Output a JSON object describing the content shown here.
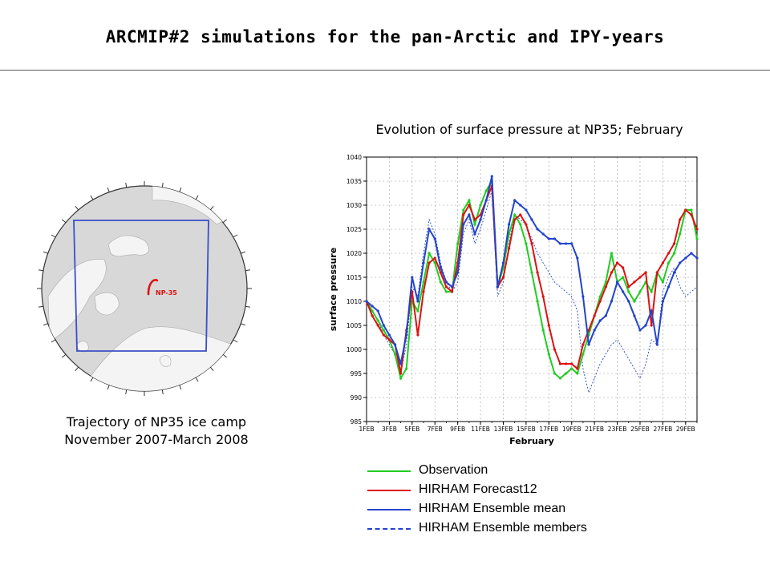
{
  "slide": {
    "title": "ARCMIP#2 simulations for the pan-Arctic and IPY-years"
  },
  "map": {
    "trajectory_label": "NP-35",
    "caption_line1": "Trajectory of NP35 ice camp",
    "caption_line2": "November 2007-March 2008",
    "colors": {
      "ocean": "#d8d8d8",
      "land": "#f4f4f4",
      "domain_box": "#3b4fc7",
      "trajectory": "#dd1111"
    }
  },
  "chart_data": {
    "type": "line",
    "title": "Evolution of surface pressure at NP35; February",
    "xlabel": "February",
    "ylabel": "surface pressure",
    "ylim": [
      985,
      1040
    ],
    "yticks": [
      985,
      990,
      995,
      1000,
      1005,
      1010,
      1015,
      1020,
      1025,
      1030,
      1035,
      1040
    ],
    "xlim": [
      1,
      30
    ],
    "xticks": [
      1,
      3,
      5,
      7,
      9,
      11,
      13,
      15,
      17,
      19,
      21,
      23,
      25,
      27,
      29
    ],
    "xtick_labels": [
      "1FEB",
      "3FEB",
      "5FEB",
      "7FEB",
      "9FEB",
      "11FEB",
      "13FEB",
      "15FEB",
      "17FEB",
      "19FEB",
      "21FEB",
      "23FEB",
      "25FEB",
      "27FEB",
      "29FEB"
    ],
    "grid": true,
    "x_day": [
      1,
      1.5,
      2,
      2.5,
      3,
      3.5,
      4,
      4.5,
      5,
      5.5,
      6,
      6.5,
      7,
      7.5,
      8,
      8.5,
      9,
      9.5,
      10,
      10.5,
      11,
      11.5,
      12,
      12.5,
      13,
      13.5,
      14,
      14.5,
      15,
      15.5,
      16,
      16.5,
      17,
      17.5,
      18,
      18.5,
      19,
      19.5,
      20,
      20.5,
      21,
      21.5,
      22,
      22.5,
      23,
      23.5,
      24,
      24.5,
      25,
      25.5,
      26,
      26.5,
      27,
      27.5,
      28,
      28.5,
      29,
      29.5,
      30
    ],
    "series": [
      {
        "name": "Observation",
        "color": "#22cc22",
        "style": "solid",
        "values": [
          1010,
          1008,
          1006,
          1004,
          1002,
          999,
          994,
          996,
          1010,
          1008,
          1014,
          1020,
          1018,
          1014,
          1012,
          1012,
          1022,
          1029,
          1031,
          1026,
          1030,
          1033,
          1035,
          1013,
          1017,
          1024,
          1028,
          1026,
          1022,
          1016,
          1010,
          1004,
          999,
          995,
          994,
          995,
          996,
          995,
          999,
          1003,
          1007,
          1011,
          1014,
          1020,
          1014,
          1015,
          1012,
          1010,
          1012,
          1014,
          1012,
          1016,
          1014,
          1018,
          1020,
          1024,
          1029,
          1029,
          1023
        ]
      },
      {
        "name": "HIRHAM Forecast12",
        "color": "#dd1111",
        "style": "solid",
        "values": [
          1010,
          1007,
          1005,
          1003,
          1002,
          1001,
          995,
          1004,
          1012,
          1003,
          1012,
          1018,
          1019,
          1016,
          1013,
          1012,
          1018,
          1028,
          1030,
          1027,
          1028,
          1031,
          1034,
          1013,
          1015,
          1021,
          1027,
          1028,
          1026,
          1022,
          1016,
          1011,
          1005,
          1000,
          997,
          997,
          997,
          996,
          1001,
          1004,
          1007,
          1010,
          1013,
          1016,
          1018,
          1017,
          1013,
          1014,
          1015,
          1016,
          1005,
          1016,
          1018,
          1020,
          1022,
          1027,
          1029,
          1028,
          1025
        ]
      },
      {
        "name": "HIRHAM Ensemble mean",
        "color": "#2244cc",
        "style": "solid",
        "values": [
          1010,
          1009,
          1008,
          1005,
          1003,
          1001,
          997,
          1003,
          1015,
          1010,
          1018,
          1025,
          1023,
          1017,
          1014,
          1013,
          1016,
          1026,
          1028,
          1024,
          1027,
          1031,
          1036,
          1013,
          1018,
          1026,
          1031,
          1030,
          1029,
          1027,
          1025,
          1024,
          1023,
          1023,
          1022,
          1022,
          1022,
          1019,
          1011,
          1001,
          1004,
          1006,
          1007,
          1010,
          1014,
          1012,
          1010,
          1007,
          1004,
          1005,
          1008,
          1001,
          1010,
          1013,
          1016,
          1018,
          1019,
          1020,
          1019
        ]
      },
      {
        "name": "HIRHAM Ensemble members",
        "color": "#2244cc",
        "style": "dashed",
        "values": [
          1010,
          1008,
          1006,
          1003,
          1001,
          999,
          995,
          1001,
          1013,
          1011,
          1020,
          1027,
          1024,
          1018,
          1014,
          1012,
          1014,
          1024,
          1027,
          1022,
          1025,
          1029,
          1033,
          1011,
          1014,
          1022,
          1028,
          1027,
          1026,
          1023,
          1020,
          1018,
          1016,
          1014,
          1013,
          1012,
          1011,
          1008,
          996,
          991,
          994,
          997,
          999,
          1001,
          1002,
          1000,
          998,
          996,
          994,
          997,
          1002,
          1001,
          1012,
          1015,
          1017,
          1013,
          1011,
          1012,
          1013
        ]
      }
    ]
  }
}
